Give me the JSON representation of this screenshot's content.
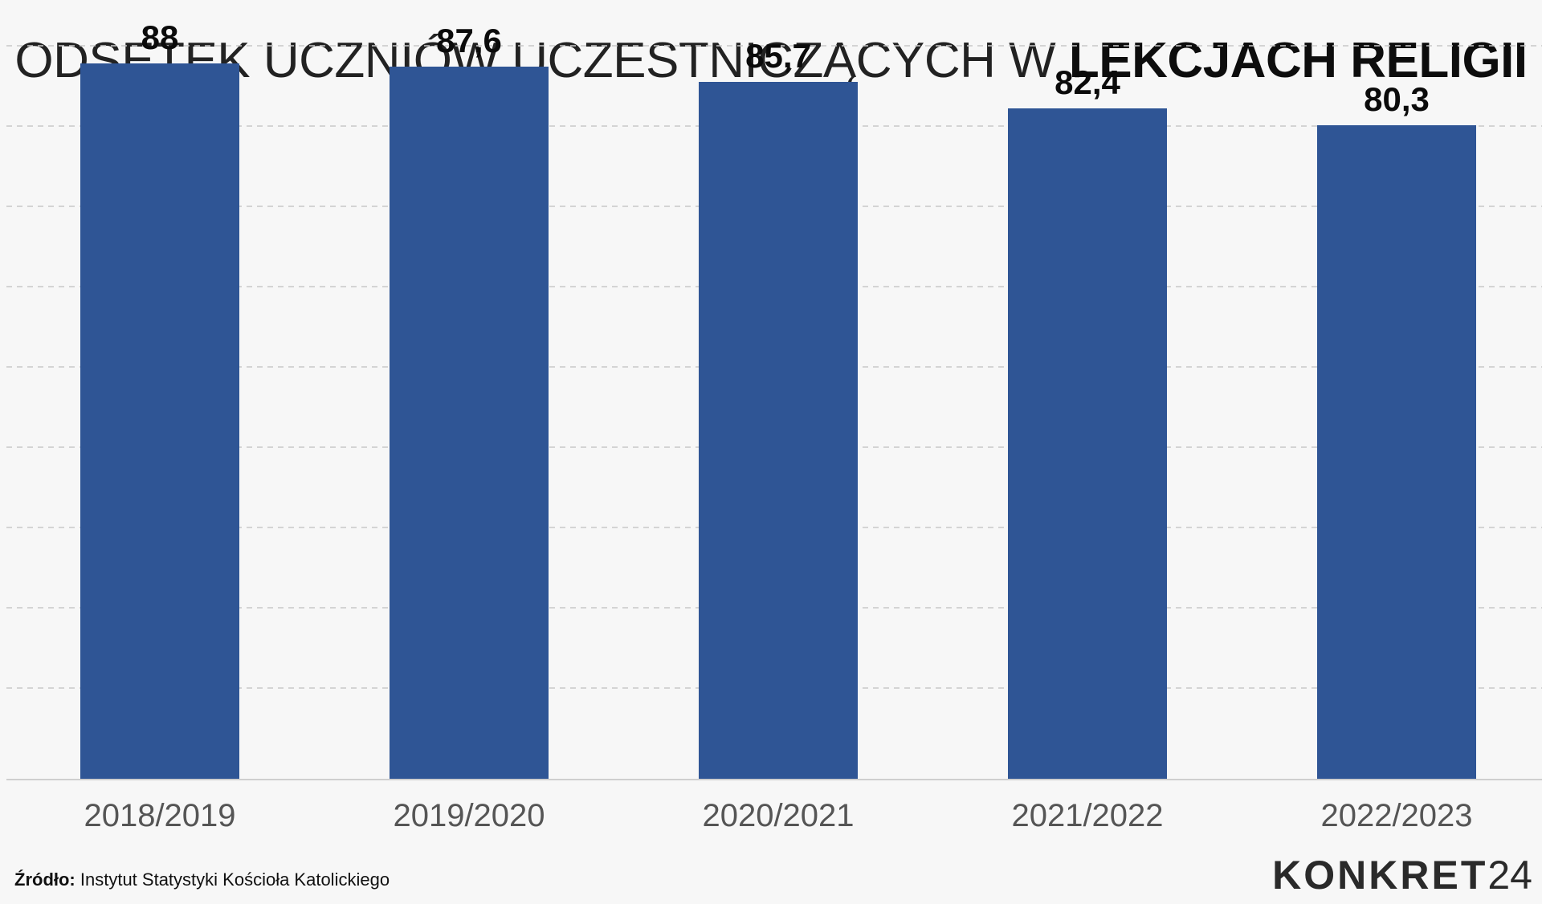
{
  "title": {
    "prefix": "ODSETEK UCZNIÓW UCZESTNICZĄCYCH W ",
    "highlight": "LEKCJACH RELIGII"
  },
  "chart_data": {
    "type": "bar",
    "title": "ODSETEK UCZNIÓW UCZESTNICZĄCYCH W LEKCJACH RELIGII",
    "categories": [
      "2018/2019",
      "2019/2020",
      "2020/2021",
      "2021/2022",
      "2022/2023"
    ],
    "values": [
      88,
      87.6,
      85.7,
      82.4,
      80.3
    ],
    "value_labels": [
      "88",
      "87,6",
      "85,7",
      "82,4",
      "80,3"
    ],
    "xlabel": "",
    "ylabel": "",
    "ylim": [
      0,
      90
    ],
    "grid": true,
    "legend": "none",
    "bar_color": "#2f5595",
    "grid_color": "#c9c9c9"
  },
  "footer": {
    "source_label": "Źródło:",
    "source_text": " Instytut Statystyki Kościoła Katolickiego"
  },
  "logo": {
    "text": "KONKRET",
    "number": "24"
  }
}
